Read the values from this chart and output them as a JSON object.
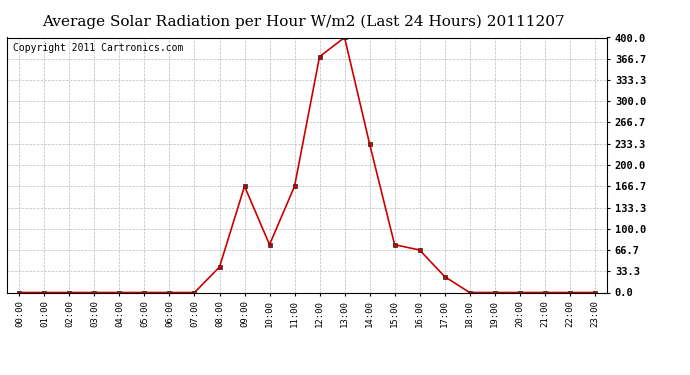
{
  "title": "Average Solar Radiation per Hour W/m2 (Last 24 Hours) 20111207",
  "copyright": "Copyright 2011 Cartronics.com",
  "x_labels": [
    "00:00",
    "01:00",
    "02:00",
    "03:00",
    "04:00",
    "05:00",
    "06:00",
    "07:00",
    "08:00",
    "09:00",
    "10:00",
    "11:00",
    "12:00",
    "13:00",
    "14:00",
    "15:00",
    "16:00",
    "17:00",
    "18:00",
    "19:00",
    "20:00",
    "21:00",
    "22:00",
    "23:00"
  ],
  "y_values": [
    0.0,
    0.0,
    0.0,
    0.0,
    0.0,
    0.0,
    0.0,
    0.0,
    40.0,
    166.7,
    75.0,
    166.7,
    370.0,
    400.0,
    233.3,
    75.0,
    66.7,
    25.0,
    0.0,
    0.0,
    0.0,
    0.0,
    0.0,
    0.0
  ],
  "y_ticks": [
    0.0,
    33.3,
    66.7,
    100.0,
    133.3,
    166.7,
    200.0,
    233.3,
    266.7,
    300.0,
    333.3,
    366.7,
    400.0
  ],
  "y_min": 0.0,
  "y_max": 400.0,
  "line_color": "#cc0000",
  "marker": "s",
  "marker_size": 3,
  "bg_color": "#ffffff",
  "grid_color": "#bbbbbb",
  "title_fontsize": 11,
  "copyright_fontsize": 7
}
